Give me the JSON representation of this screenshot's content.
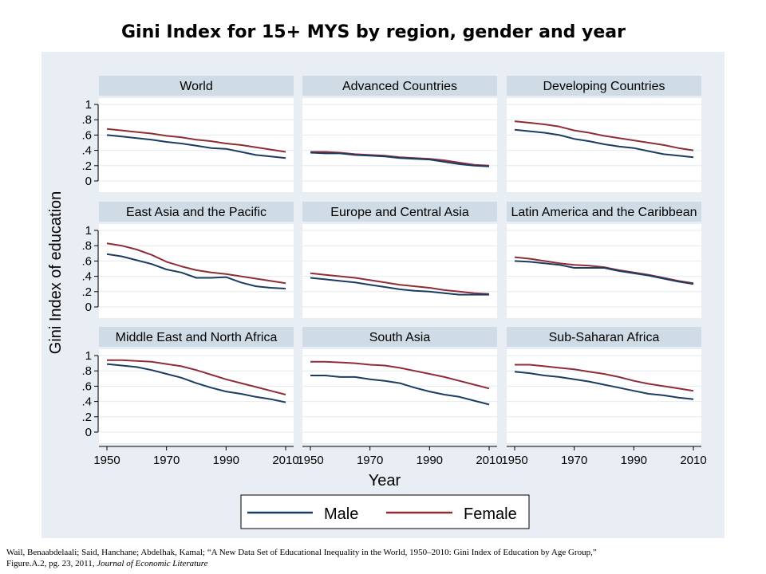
{
  "title": "Gini Index for 15+ MYS by region, gender and year",
  "colors": {
    "male": "#1a3c62",
    "female": "#8f2d36"
  },
  "caption": {
    "line1": "Wail, Benaabdelaali; Said, Hanchane; Abdelhak, Kamal; “A New Data Set of Educational Inequality in the World, 1950–2010: Gini Index of Education by Age Group,”",
    "line2_a": "Figure.A.2, pg. 23, 2011, ",
    "line2_b": "Journal of Economic Literature"
  },
  "chart_data": {
    "type": "line",
    "ylabel": "Gini Index of education",
    "xlabel": "Year",
    "xlim": [
      1950,
      2010
    ],
    "ylim": [
      0,
      1
    ],
    "xticks": [
      "1950",
      "1970",
      "1990",
      "2010"
    ],
    "yticks": [
      "0",
      ".2",
      ".4",
      ".6",
      ".8",
      "1"
    ],
    "x": [
      1950,
      1955,
      1960,
      1965,
      1970,
      1975,
      1980,
      1985,
      1990,
      1995,
      2000,
      2005,
      2010
    ],
    "legend": {
      "position": "bottom",
      "entries": [
        "Male",
        "Female"
      ]
    },
    "panels": [
      {
        "name": "World",
        "male": [
          0.6,
          0.58,
          0.56,
          0.54,
          0.51,
          0.49,
          0.46,
          0.43,
          0.42,
          0.38,
          0.34,
          0.32,
          0.3
        ],
        "female": [
          0.68,
          0.66,
          0.64,
          0.62,
          0.59,
          0.57,
          0.54,
          0.52,
          0.49,
          0.47,
          0.44,
          0.41,
          0.38
        ]
      },
      {
        "name": "Advanced Countries",
        "male": [
          0.37,
          0.36,
          0.36,
          0.34,
          0.33,
          0.32,
          0.3,
          0.29,
          0.28,
          0.25,
          0.22,
          0.2,
          0.19
        ],
        "female": [
          0.38,
          0.38,
          0.37,
          0.35,
          0.34,
          0.33,
          0.31,
          0.3,
          0.29,
          0.27,
          0.24,
          0.21,
          0.2
        ]
      },
      {
        "name": "Developing Countries",
        "male": [
          0.67,
          0.65,
          0.63,
          0.6,
          0.55,
          0.52,
          0.48,
          0.45,
          0.43,
          0.39,
          0.35,
          0.33,
          0.31
        ],
        "female": [
          0.78,
          0.76,
          0.74,
          0.71,
          0.66,
          0.63,
          0.59,
          0.56,
          0.53,
          0.5,
          0.47,
          0.43,
          0.4
        ]
      },
      {
        "name": "East Asia and the Pacific",
        "male": [
          0.69,
          0.66,
          0.61,
          0.56,
          0.49,
          0.45,
          0.38,
          0.38,
          0.39,
          0.32,
          0.27,
          0.25,
          0.24
        ],
        "female": [
          0.83,
          0.8,
          0.75,
          0.68,
          0.59,
          0.53,
          0.48,
          0.45,
          0.43,
          0.4,
          0.37,
          0.34,
          0.31
        ]
      },
      {
        "name": "Europe and Central Asia",
        "male": [
          0.38,
          0.36,
          0.34,
          0.32,
          0.29,
          0.26,
          0.23,
          0.21,
          0.2,
          0.18,
          0.16,
          0.16,
          0.16
        ],
        "female": [
          0.44,
          0.42,
          0.4,
          0.38,
          0.35,
          0.32,
          0.29,
          0.27,
          0.25,
          0.22,
          0.2,
          0.18,
          0.17
        ]
      },
      {
        "name": "Latin America and the Caribbean",
        "male": [
          0.6,
          0.59,
          0.57,
          0.55,
          0.51,
          0.51,
          0.51,
          0.47,
          0.44,
          0.41,
          0.37,
          0.33,
          0.3
        ],
        "female": [
          0.65,
          0.63,
          0.6,
          0.57,
          0.55,
          0.54,
          0.52,
          0.48,
          0.45,
          0.42,
          0.38,
          0.34,
          0.31
        ]
      },
      {
        "name": "Middle East and North Africa",
        "male": [
          0.89,
          0.87,
          0.85,
          0.81,
          0.76,
          0.71,
          0.64,
          0.58,
          0.53,
          0.5,
          0.46,
          0.43,
          0.39
        ],
        "female": [
          0.94,
          0.94,
          0.93,
          0.92,
          0.89,
          0.86,
          0.81,
          0.75,
          0.69,
          0.64,
          0.59,
          0.54,
          0.49
        ]
      },
      {
        "name": "South Asia",
        "male": [
          0.74,
          0.74,
          0.72,
          0.72,
          0.69,
          0.67,
          0.64,
          0.58,
          0.53,
          0.49,
          0.46,
          0.41,
          0.36
        ],
        "female": [
          0.92,
          0.92,
          0.91,
          0.9,
          0.88,
          0.87,
          0.84,
          0.8,
          0.76,
          0.72,
          0.67,
          0.62,
          0.57
        ]
      },
      {
        "name": "Sub-Saharan Africa",
        "male": [
          0.79,
          0.77,
          0.74,
          0.72,
          0.69,
          0.66,
          0.62,
          0.58,
          0.54,
          0.5,
          0.48,
          0.45,
          0.43
        ],
        "female": [
          0.88,
          0.88,
          0.86,
          0.84,
          0.82,
          0.79,
          0.76,
          0.72,
          0.67,
          0.63,
          0.6,
          0.57,
          0.54
        ]
      }
    ]
  }
}
